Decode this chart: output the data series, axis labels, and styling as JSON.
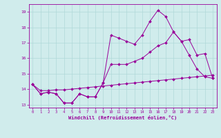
{
  "xlabel": "Windchill (Refroidissement éolien,°C)",
  "x": [
    0,
    1,
    2,
    3,
    4,
    5,
    6,
    7,
    8,
    9,
    10,
    11,
    12,
    13,
    14,
    15,
    16,
    17,
    18,
    19,
    20,
    21,
    22,
    23
  ],
  "series1": [
    14.3,
    13.7,
    13.8,
    13.7,
    13.1,
    13.1,
    13.7,
    13.5,
    13.5,
    14.4,
    17.5,
    17.3,
    17.1,
    16.9,
    17.5,
    18.4,
    19.1,
    18.7,
    17.7,
    17.1,
    16.2,
    15.3,
    14.8,
    14.7
  ],
  "series2": [
    14.3,
    13.7,
    13.8,
    13.7,
    13.1,
    13.1,
    13.7,
    13.5,
    13.5,
    14.4,
    15.6,
    15.6,
    15.6,
    15.8,
    16.0,
    16.4,
    16.8,
    17.0,
    17.7,
    17.1,
    17.2,
    16.2,
    16.3,
    14.7
  ],
  "series3": [
    14.3,
    13.9,
    13.9,
    13.95,
    13.95,
    14.0,
    14.05,
    14.1,
    14.15,
    14.2,
    14.25,
    14.3,
    14.35,
    14.4,
    14.45,
    14.5,
    14.55,
    14.6,
    14.65,
    14.7,
    14.75,
    14.8,
    14.85,
    14.9
  ],
  "line_color": "#990099",
  "bg_color": "#d0ecec",
  "grid_color": "#b0d8d8",
  "ylim": [
    12.8,
    19.5
  ],
  "yticks": [
    13,
    14,
    15,
    16,
    17,
    18,
    19
  ],
  "xticks": [
    0,
    1,
    2,
    3,
    4,
    5,
    6,
    7,
    8,
    9,
    10,
    11,
    12,
    13,
    14,
    15,
    16,
    17,
    18,
    19,
    20,
    21,
    22,
    23
  ]
}
